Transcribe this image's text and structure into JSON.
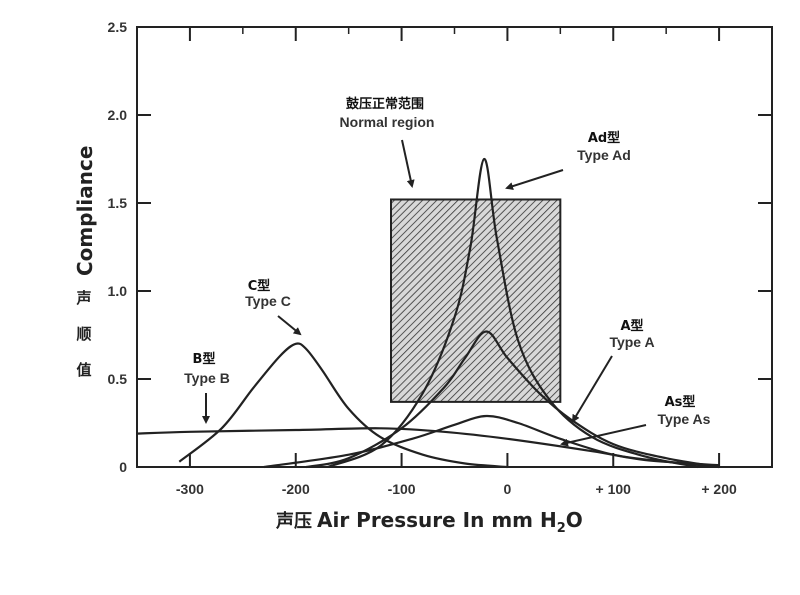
{
  "chart_data": {
    "type": "line",
    "xlabel_cn": "声压",
    "xlabel": "Air Pressure In mm H",
    "xlabel_sub": "2",
    "xlabel_end": "O",
    "ylabel": "Compliance",
    "ylabel_cn": [
      "声",
      "顺",
      "值"
    ],
    "xlim": [
      -350,
      250
    ],
    "ylim": [
      0,
      2.5
    ],
    "x_ticks": [
      -300,
      -200,
      -100,
      0,
      100,
      200
    ],
    "x_tick_labels": [
      "-300",
      "-200",
      "-100",
      "0",
      "+ 100",
      "+ 200"
    ],
    "y_ticks": [
      0,
      0.5,
      1.0,
      1.5,
      2.0,
      2.5
    ],
    "y_tick_labels": [
      "0",
      "0.5",
      "1.0",
      "1.5",
      "2.0",
      "2.5"
    ],
    "normal_region": {
      "label_cn": "鼓压正常范围",
      "label": "Normal region",
      "x": [
        -110,
        50
      ],
      "y": [
        0.37,
        1.52
      ]
    },
    "series": [
      {
        "name": "Type A",
        "label_cn": "A型",
        "x": [
          -190,
          -150,
          -100,
          -60,
          -40,
          -20,
          0,
          30,
          60,
          100,
          150,
          200
        ],
        "y": [
          0.0,
          0.05,
          0.22,
          0.45,
          0.62,
          0.77,
          0.62,
          0.42,
          0.27,
          0.13,
          0.05,
          0.0
        ]
      },
      {
        "name": "Type Ad",
        "label_cn": "Ad型",
        "x": [
          -170,
          -120,
          -80,
          -50,
          -35,
          -22,
          -10,
          10,
          40,
          80,
          130,
          180
        ],
        "y": [
          0.0,
          0.12,
          0.42,
          0.85,
          1.25,
          1.75,
          1.3,
          0.72,
          0.38,
          0.17,
          0.06,
          0.0
        ]
      },
      {
        "name": "Type As",
        "label_cn": "As型",
        "x": [
          -230,
          -150,
          -90,
          -50,
          -20,
          10,
          50,
          100,
          150,
          200
        ],
        "y": [
          0.0,
          0.07,
          0.16,
          0.24,
          0.29,
          0.25,
          0.16,
          0.07,
          0.03,
          0.0
        ]
      },
      {
        "name": "Type B",
        "label_cn": "B型",
        "x": [
          -370,
          -300,
          -200,
          -120,
          -60,
          0,
          80,
          130,
          200
        ],
        "y": [
          0.19,
          0.2,
          0.21,
          0.22,
          0.2,
          0.16,
          0.09,
          0.04,
          0.01
        ]
      },
      {
        "name": "Type C",
        "label_cn": "C型",
        "x": [
          -310,
          -270,
          -240,
          -215,
          -200,
          -190,
          -175,
          -150,
          -120,
          -80,
          -40,
          0
        ],
        "y": [
          0.03,
          0.22,
          0.45,
          0.63,
          0.7,
          0.67,
          0.55,
          0.33,
          0.17,
          0.07,
          0.02,
          0.0
        ]
      }
    ]
  }
}
